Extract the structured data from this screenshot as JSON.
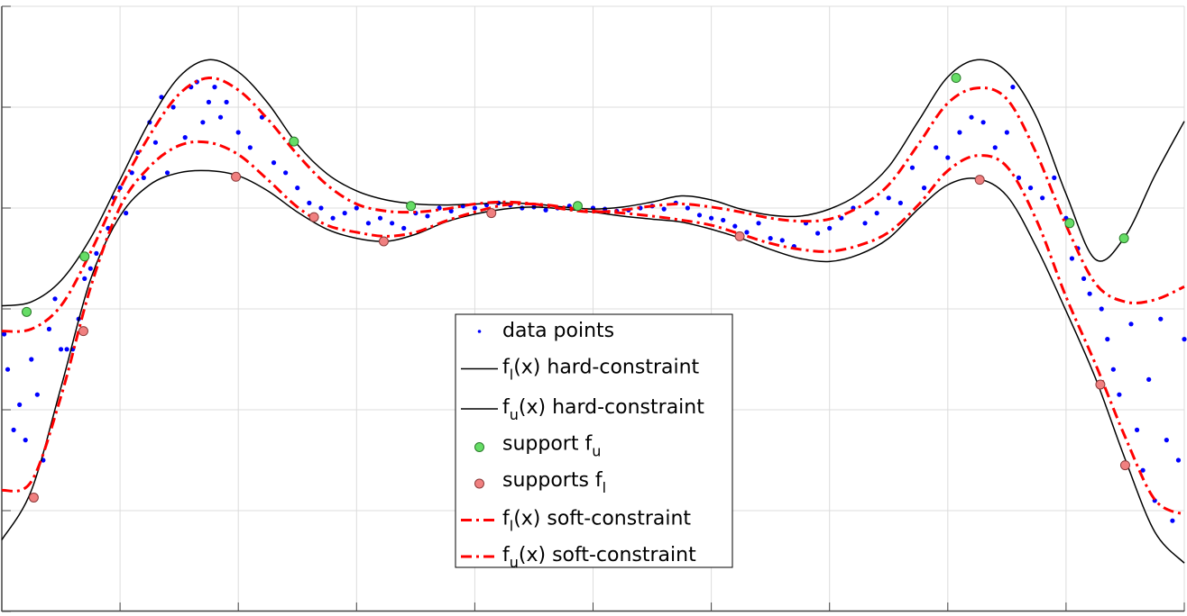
{
  "chart_data": {
    "type": "line",
    "xlim": [
      0,
      10
    ],
    "ylim": [
      -3,
      3
    ],
    "xticks": [
      0,
      1,
      2,
      3,
      4,
      5,
      6,
      7,
      8,
      9,
      10
    ],
    "yticks": [
      -3,
      -2,
      -1,
      0,
      1,
      2,
      3
    ],
    "grid": true,
    "legend": "south",
    "curve_x": [
      0,
      0.25,
      0.5,
      0.75,
      1,
      1.25,
      1.5,
      1.75,
      2,
      2.25,
      2.5,
      2.75,
      3,
      3.25,
      3.5,
      3.75,
      4,
      4.25,
      4.5,
      4.75,
      5,
      5.25,
      5.5,
      5.75,
      6,
      6.25,
      6.5,
      6.75,
      7,
      7.25,
      7.5,
      7.75,
      8,
      8.25,
      8.5,
      8.75,
      9,
      9.25,
      9.5,
      9.75,
      10
    ],
    "series": [
      {
        "name": [
          "data points"
        ],
        "style": "dots",
        "color": "#0000ff",
        "x": [
          0.02,
          0.05,
          0.1,
          0.15,
          0.2,
          0.25,
          0.3,
          0.35,
          0.4,
          0.45,
          0.5,
          0.55,
          0.6,
          0.65,
          0.7,
          0.75,
          0.8,
          0.9,
          0.95,
          1.0,
          1.05,
          1.1,
          1.15,
          1.2,
          1.25,
          1.3,
          1.35,
          1.4,
          1.45,
          1.55,
          1.6,
          1.65,
          1.7,
          1.75,
          1.8,
          1.85,
          1.9,
          2.0,
          2.1,
          2.2,
          2.3,
          2.4,
          2.5,
          2.6,
          2.7,
          2.8,
          2.9,
          3.0,
          3.1,
          3.2,
          3.3,
          3.4,
          3.5,
          3.6,
          3.7,
          3.8,
          3.9,
          4.0,
          4.1,
          4.2,
          4.3,
          4.4,
          4.5,
          4.6,
          4.7,
          4.8,
          5.0,
          5.1,
          5.2,
          5.3,
          5.4,
          5.5,
          5.6,
          5.7,
          5.8,
          5.9,
          6.0,
          6.1,
          6.2,
          6.3,
          6.4,
          6.5,
          6.6,
          6.7,
          6.8,
          6.9,
          7.0,
          7.1,
          7.2,
          7.3,
          7.4,
          7.5,
          7.6,
          7.7,
          7.8,
          7.9,
          8.0,
          8.1,
          8.2,
          8.3,
          8.4,
          8.5,
          8.55,
          8.6,
          8.7,
          8.8,
          8.9,
          9.0,
          9.05,
          9.1,
          9.15,
          9.2,
          9.3,
          9.35,
          9.4,
          9.45,
          9.55,
          9.6,
          9.65,
          9.7,
          9.75,
          9.8,
          9.85,
          9.9,
          9.95,
          10.0
        ],
        "values": [
          -0.25,
          -0.6,
          -1.2,
          -0.95,
          -1.3,
          -0.5,
          -0.85,
          -1.5,
          -0.2,
          0.1,
          -0.4,
          -0.4,
          -0.4,
          -0.1,
          0.3,
          0.4,
          0.55,
          0.8,
          1.1,
          1.2,
          0.95,
          1.35,
          1.55,
          1.3,
          1.85,
          1.65,
          2.1,
          1.35,
          2.0,
          1.7,
          2.2,
          2.25,
          1.85,
          2.05,
          2.2,
          1.9,
          2.05,
          1.75,
          1.6,
          1.9,
          1.45,
          1.35,
          1.2,
          1.05,
          1.0,
          0.9,
          0.95,
          1.0,
          0.85,
          0.9,
          0.85,
          0.8,
          0.95,
          0.92,
          1.0,
          0.97,
          1.02,
          1.0,
          1.03,
          1.05,
          1.03,
          1.0,
          1.01,
          0.98,
          1.0,
          1.02,
          1.0,
          0.99,
          0.97,
          0.98,
          1.0,
          1.02,
          0.99,
          1.05,
          1.0,
          0.93,
          0.9,
          0.88,
          0.82,
          0.76,
          0.85,
          0.7,
          0.68,
          0.62,
          0.85,
          0.75,
          0.8,
          0.9,
          1.0,
          0.85,
          0.95,
          1.1,
          1.05,
          1.4,
          1.2,
          1.6,
          1.5,
          1.75,
          1.9,
          1.85,
          1.6,
          1.75,
          2.2,
          1.3,
          1.2,
          1.1,
          1.3,
          0.9,
          0.5,
          0.6,
          0.3,
          0.15,
          0.0,
          -0.3,
          -0.6,
          -0.85,
          -0.15,
          -1.2,
          -1.6,
          -0.7,
          -1.9,
          -0.1,
          -1.3,
          -2.1,
          -1.5,
          -0.3
        ]
      },
      {
        "name": [
          "f",
          "l",
          "(x) hard-constraint"
        ],
        "style": "solid",
        "color": "#000000",
        "values": [
          -2.29,
          -1.8,
          -0.78,
          0.29,
          0.92,
          1.23,
          1.35,
          1.37,
          1.32,
          1.17,
          0.96,
          0.79,
          0.7,
          0.67,
          0.74,
          0.86,
          0.94,
          0.99,
          1.01,
          0.99,
          0.96,
          0.92,
          0.89,
          0.86,
          0.79,
          0.7,
          0.59,
          0.5,
          0.47,
          0.54,
          0.7,
          0.99,
          1.23,
          1.29,
          1.12,
          0.61,
          -0.02,
          -0.69,
          -1.49,
          -2.21,
          -2.52
        ]
      },
      {
        "name": [
          "f",
          "u",
          "(x) hard-constraint"
        ],
        "style": "solid",
        "color": "#000000",
        "values": [
          0.03,
          0.07,
          0.28,
          0.7,
          1.28,
          1.86,
          2.3,
          2.47,
          2.35,
          2.04,
          1.63,
          1.34,
          1.17,
          1.08,
          1.04,
          1.03,
          1.04,
          1.05,
          1.04,
          1.01,
          0.99,
          1.01,
          1.06,
          1.12,
          1.08,
          0.99,
          0.93,
          0.92,
          0.99,
          1.14,
          1.41,
          1.86,
          2.3,
          2.47,
          2.35,
          1.9,
          1.14,
          0.49,
          0.72,
          1.32,
          1.86
        ]
      },
      {
        "name": [
          "support f",
          "u"
        ],
        "style": "markers",
        "color": "#66dd66",
        "edge": "#2a7a2a",
        "x": [
          0.21,
          0.7,
          2.47,
          3.46,
          4.87,
          8.07,
          9.03,
          9.49
        ],
        "values": [
          -0.03,
          0.52,
          1.66,
          1.02,
          1.02,
          2.29,
          0.85,
          0.7
        ]
      },
      {
        "name": [
          "supports f",
          "l"
        ],
        "style": "markers",
        "color": "#f08080",
        "edge": "#8a3a3a",
        "x": [
          0.27,
          0.69,
          1.98,
          2.64,
          3.23,
          4.14,
          6.24,
          8.27,
          9.29,
          9.5
        ],
        "values": [
          -1.87,
          -0.22,
          1.31,
          0.91,
          0.67,
          0.95,
          0.72,
          1.28,
          -0.75,
          -1.55
        ]
      },
      {
        "name": [
          "f",
          "l",
          "(x) soft-constraint"
        ],
        "style": "dashdot",
        "color": "#ff0000",
        "values": [
          -1.8,
          -1.71,
          -0.87,
          0.21,
          1.01,
          1.41,
          1.62,
          1.65,
          1.53,
          1.28,
          1.01,
          0.83,
          0.76,
          0.72,
          0.76,
          0.87,
          0.96,
          1.03,
          1.04,
          1.01,
          0.97,
          0.95,
          0.92,
          0.88,
          0.83,
          0.74,
          0.65,
          0.59,
          0.57,
          0.63,
          0.76,
          1.03,
          1.37,
          1.52,
          1.41,
          0.88,
          0.12,
          -0.55,
          -1.27,
          -1.89,
          -2.04
        ]
      },
      {
        "name": [
          "f",
          "u",
          "(x) soft-constraint"
        ],
        "style": "dashdot",
        "color": "#ff0000",
        "values": [
          -0.22,
          -0.2,
          0.03,
          0.56,
          1.19,
          1.72,
          2.13,
          2.29,
          2.17,
          1.88,
          1.53,
          1.23,
          1.04,
          0.97,
          0.96,
          0.99,
          1.04,
          1.06,
          1.04,
          0.99,
          0.96,
          0.98,
          1.02,
          1.04,
          1.01,
          0.96,
          0.9,
          0.87,
          0.89,
          1.01,
          1.23,
          1.63,
          2.04,
          2.19,
          2.08,
          1.54,
          0.83,
          0.25,
          0.07,
          0.09,
          0.22
        ]
      }
    ]
  }
}
